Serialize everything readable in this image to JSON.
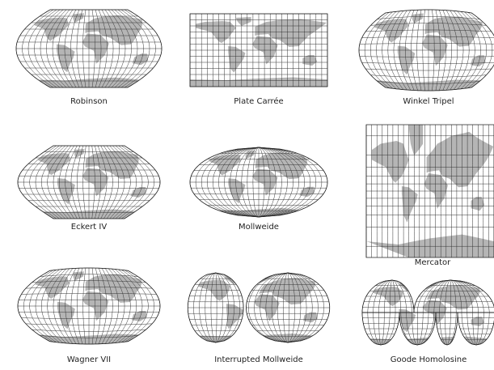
{
  "projections": [
    {
      "label": "Robinson"
    },
    {
      "label": "Plate Carrée"
    },
    {
      "label": "Winkel Tripel"
    },
    {
      "label": "Eckert IV"
    },
    {
      "label": "Mollweide"
    },
    {
      "label": "Mercator"
    },
    {
      "label": "Wagner VII"
    },
    {
      "label": "Interrupted Mollweide"
    },
    {
      "label": "Goode Homolosine"
    }
  ]
}
